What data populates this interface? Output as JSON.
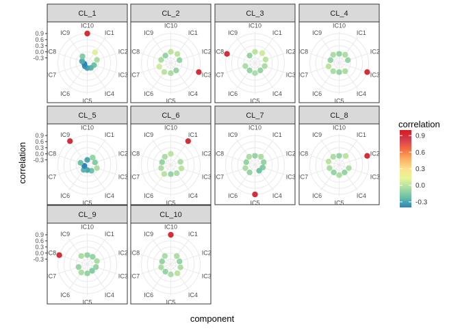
{
  "chart_data": {
    "type": "scatter",
    "coord": "polar",
    "x_axis_title": "component",
    "y_axis_title": "correlation",
    "categories": [
      "IC1",
      "IC2",
      "IC3",
      "IC4",
      "IC5",
      "IC6",
      "IC7",
      "IC8",
      "IC9",
      "IC10"
    ],
    "y_ticks": [
      0.9,
      0.6,
      0.3,
      0.0,
      -0.3
    ],
    "y_tick_labels": [
      "0.9",
      "0.6",
      "0.3",
      "0.0",
      "-0.3"
    ],
    "ylim": [
      -0.55,
      1.0
    ],
    "legend": {
      "title": "correlation",
      "position": "right",
      "type": "colorbar",
      "range": [
        -0.4,
        1.0
      ],
      "breaks": [
        0.9,
        0.6,
        0.3,
        0.0,
        -0.3
      ],
      "break_labels": [
        "0.9",
        "0.6",
        "0.3",
        "0.0",
        "-0.3"
      ]
    },
    "palette": [
      "#2B83BA",
      "#66BFA6",
      "#ABDDA4",
      "#E6F598",
      "#FEE08B",
      "#FDAE61",
      "#F46D43",
      "#D53E4F",
      "#D7191C"
    ],
    "panels": [
      {
        "label": "CL_1",
        "values": [
          0.1,
          -0.05,
          -0.2,
          -0.25,
          -0.3,
          -0.35,
          -0.4,
          -0.28,
          -0.15,
          0.9
        ]
      },
      {
        "label": "CL_2",
        "values": [
          0.0,
          -0.1,
          0.9,
          -0.1,
          -0.05,
          0.0,
          0.05,
          -0.05,
          -0.1,
          0.0
        ]
      },
      {
        "label": "CL_3",
        "values": [
          0.05,
          0.0,
          -0.05,
          -0.1,
          -0.05,
          -0.1,
          -0.05,
          0.9,
          -0.1,
          0.0
        ]
      },
      {
        "label": "CL_4",
        "values": [
          -0.05,
          -0.1,
          0.9,
          -0.05,
          -0.1,
          -0.05,
          0.0,
          -0.1,
          -0.05,
          -0.1
        ]
      },
      {
        "label": "CL_5",
        "values": [
          -0.1,
          -0.15,
          -0.05,
          -0.2,
          -0.3,
          -0.25,
          -0.4,
          -0.2,
          0.9,
          -0.3
        ]
      },
      {
        "label": "CL_6",
        "values": [
          0.9,
          -0.05,
          0.0,
          -0.05,
          -0.1,
          0.0,
          -0.05,
          -0.1,
          -0.05,
          0.0
        ]
      },
      {
        "label": "CL_7",
        "values": [
          -0.05,
          -0.1,
          -0.15,
          -0.2,
          0.9,
          -0.1,
          -0.05,
          -0.1,
          -0.05,
          -0.1
        ]
      },
      {
        "label": "CL_8",
        "values": [
          0.0,
          0.9,
          -0.05,
          -0.1,
          -0.05,
          -0.1,
          -0.05,
          0.0,
          -0.05,
          -0.1
        ]
      },
      {
        "label": "CL_9",
        "values": [
          -0.1,
          -0.05,
          -0.1,
          -0.15,
          -0.1,
          -0.05,
          -0.1,
          0.9,
          -0.05,
          -0.1
        ]
      },
      {
        "label": "CL_10",
        "values": [
          -0.05,
          -0.1,
          -0.05,
          0.0,
          -0.05,
          -0.1,
          -0.05,
          -0.1,
          -0.05,
          0.9
        ]
      }
    ]
  }
}
